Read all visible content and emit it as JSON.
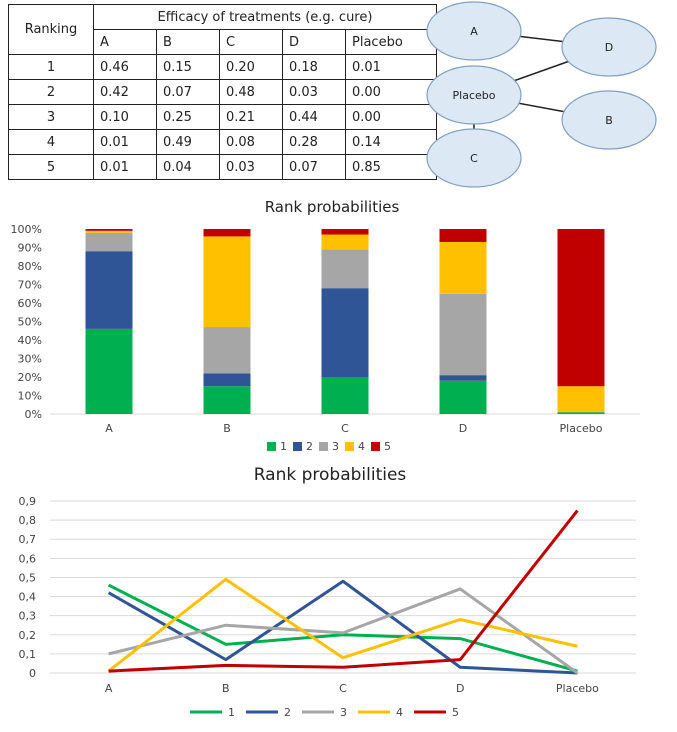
{
  "table": {
    "ranking_header": "Ranking",
    "group_header": "Efficacy of treatments (e.g. cure)",
    "columns": [
      "A",
      "B",
      "C",
      "D",
      "Placebo"
    ],
    "rows": [
      {
        "rank": "1",
        "values": [
          "0.46",
          "0.15",
          "0.20",
          "0.18",
          "0.01"
        ]
      },
      {
        "rank": "2",
        "values": [
          "0.42",
          "0.07",
          "0.48",
          "0.03",
          "0.00"
        ]
      },
      {
        "rank": "3",
        "values": [
          "0.10",
          "0.25",
          "0.21",
          "0.44",
          "0.00"
        ]
      },
      {
        "rank": "4",
        "values": [
          "0.01",
          "0.49",
          "0.08",
          "0.28",
          "0.14"
        ]
      },
      {
        "rank": "5",
        "values": [
          "0.01",
          "0.04",
          "0.03",
          "0.07",
          "0.85"
        ]
      }
    ]
  },
  "network": {
    "nodes": [
      "A",
      "Placebo",
      "C",
      "D",
      "B"
    ],
    "edges": [
      [
        "A",
        "D"
      ],
      [
        "Placebo",
        "D"
      ],
      [
        "Placebo",
        "B"
      ],
      [
        "Placebo",
        "C"
      ]
    ],
    "node_color": "#dde8f5",
    "node_border": "#7f9fc2"
  },
  "chart_data": [
    {
      "type": "bar",
      "stacked": true,
      "title": "Rank probabilities",
      "categories": [
        "A",
        "B",
        "C",
        "D",
        "Placebo"
      ],
      "series": [
        {
          "name": "1",
          "color": "#00b050",
          "values": [
            46,
            15,
            20,
            18,
            1
          ]
        },
        {
          "name": "2",
          "color": "#2f5597",
          "values": [
            42,
            7,
            48,
            3,
            0
          ]
        },
        {
          "name": "3",
          "color": "#a6a6a6",
          "values": [
            10,
            25,
            21,
            44,
            0
          ]
        },
        {
          "name": "4",
          "color": "#ffc000",
          "values": [
            1,
            49,
            8,
            28,
            14
          ]
        },
        {
          "name": "5",
          "color": "#c00000",
          "values": [
            1,
            4,
            3,
            7,
            85
          ]
        }
      ],
      "ylim": [
        0,
        100
      ],
      "yticks": [
        "0%",
        "10%",
        "20%",
        "30%",
        "40%",
        "50%",
        "60%",
        "70%",
        "80%",
        "90%",
        "100%"
      ],
      "grid": false,
      "legend_position": "bottom"
    },
    {
      "type": "line",
      "title": "Rank probabilities",
      "categories": [
        "A",
        "B",
        "C",
        "D",
        "Placebo"
      ],
      "series": [
        {
          "name": "1",
          "color": "#00b050",
          "values": [
            0.46,
            0.15,
            0.2,
            0.18,
            0.01
          ]
        },
        {
          "name": "2",
          "color": "#2f5597",
          "values": [
            0.42,
            0.07,
            0.48,
            0.03,
            0.0
          ]
        },
        {
          "name": "3",
          "color": "#a6a6a6",
          "values": [
            0.1,
            0.25,
            0.21,
            0.44,
            0.0
          ]
        },
        {
          "name": "4",
          "color": "#ffc000",
          "values": [
            0.01,
            0.49,
            0.08,
            0.28,
            0.14
          ]
        },
        {
          "name": "5",
          "color": "#c00000",
          "values": [
            0.01,
            0.04,
            0.03,
            0.07,
            0.85
          ]
        }
      ],
      "ylim": [
        0,
        0.9
      ],
      "yticks": [
        "0",
        "0,1",
        "0,2",
        "0,3",
        "0,4",
        "0,5",
        "0,6",
        "0,7",
        "0,8",
        "0,9"
      ],
      "grid": true,
      "legend_position": "bottom"
    }
  ]
}
